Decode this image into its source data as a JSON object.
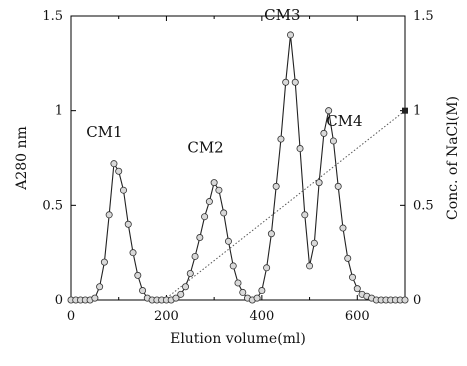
{
  "chart_data": {
    "type": "line",
    "xlabel": "Elution volume(ml)",
    "ylabel": "A280 nm",
    "y2label": "Conc. of  NaCl(M)",
    "xlim": [
      0,
      700
    ],
    "ylim": [
      0,
      1.5
    ],
    "y2lim": [
      0,
      1.5
    ],
    "x_ticks": [
      "0",
      "200",
      "400",
      "600"
    ],
    "y_ticks": [
      "0",
      "0.5",
      "1",
      "1.5"
    ],
    "y2_ticks": [
      "0",
      "0.5",
      "1",
      "1.5"
    ],
    "grid": false,
    "annotations": [
      {
        "text": "CM1",
        "x": 70,
        "y": 0.86
      },
      {
        "text": "CM2",
        "x": 282,
        "y": 0.78
      },
      {
        "text": "CM3",
        "x": 443,
        "y": 1.48
      },
      {
        "text": "CM4",
        "x": 573,
        "y": 0.92
      }
    ],
    "series": [
      {
        "marker": "circle",
        "x": [
          0,
          10,
          20,
          30,
          40,
          50,
          60,
          70,
          80,
          90,
          100,
          110,
          120,
          130,
          140,
          150,
          160,
          170,
          180,
          190,
          200,
          210,
          220,
          230,
          240,
          250,
          260,
          270,
          280,
          290,
          300,
          310,
          320,
          330,
          340,
          350,
          360,
          370,
          380,
          390,
          400,
          410,
          420,
          430,
          440,
          450,
          460,
          470,
          480,
          490,
          500,
          510,
          520,
          530,
          540,
          550,
          560,
          570,
          580,
          590,
          600,
          610,
          620,
          630,
          640,
          650,
          660,
          670,
          680,
          690,
          700
        ],
        "values": [
          0,
          0,
          0,
          0,
          0,
          0.01,
          0.07,
          0.2,
          0.45,
          0.72,
          0.68,
          0.58,
          0.4,
          0.25,
          0.13,
          0.05,
          0.01,
          0,
          0,
          0,
          0,
          0,
          0.01,
          0.03,
          0.07,
          0.14,
          0.23,
          0.33,
          0.44,
          0.52,
          0.62,
          0.58,
          0.46,
          0.31,
          0.18,
          0.09,
          0.04,
          0.01,
          0,
          0.01,
          0.05,
          0.17,
          0.35,
          0.6,
          0.85,
          1.15,
          1.4,
          1.15,
          0.8,
          0.45,
          0.18,
          0.3,
          0.62,
          0.88,
          1.0,
          0.84,
          0.6,
          0.38,
          0.22,
          0.12,
          0.06,
          0.03,
          0.02,
          0.01,
          0,
          0,
          0,
          0,
          0,
          0,
          0
        ]
      },
      {
        "axis": "y2",
        "style": "dotted",
        "x": [
          195,
          700
        ],
        "values": [
          0,
          1.0
        ]
      }
    ]
  }
}
